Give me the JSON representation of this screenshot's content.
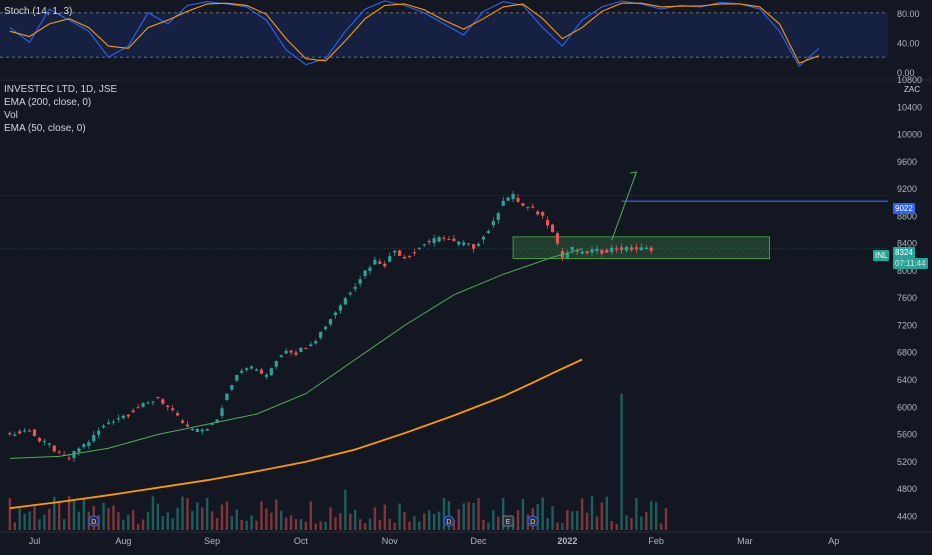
{
  "legend": {
    "stoch": "Stoch (14, 1, 3)",
    "symbol": "INVESTEC LTD, 1D, JSE",
    "ema200": "EMA (200, close, 0)",
    "vol": "Vol",
    "ema50": "EMA (50, close, 0)"
  },
  "price_axis_top_label": "ZAC",
  "price_tags": {
    "line_label": "9022",
    "symbol": "INL",
    "last_price": "8324",
    "countdown": "07:11:44"
  },
  "event_markers": [
    "D",
    "D",
    "E",
    "D"
  ],
  "colors": {
    "background": "#131722",
    "up": "#26a69a",
    "down": "#ef5350",
    "ema50": "#4caf50",
    "ema200": "#ff9800",
    "stoch_k": "#2962ff",
    "stoch_d": "#ff9800",
    "resistance": "#2962ff",
    "zone": "#4caf50",
    "arrow": "#4caf50"
  },
  "chart_data": [
    {
      "type": "line",
      "title": "Stoch (14, 1, 3)",
      "ylim": [
        0,
        100
      ],
      "yticks": [
        "80.00",
        "40.00",
        "0.00"
      ],
      "ytick_values": [
        80,
        40,
        0
      ],
      "bands": [
        20,
        80
      ],
      "series": [
        {
          "name": "%K",
          "x": [
            0,
            4,
            8,
            12,
            16,
            20,
            24,
            28,
            32,
            36,
            40,
            44,
            48,
            52,
            56,
            60,
            64,
            68,
            72,
            76,
            80,
            84,
            88,
            92,
            96,
            100,
            104,
            108,
            112,
            116,
            120,
            124,
            128,
            132,
            136,
            140,
            144,
            148,
            152,
            156,
            160,
            164
          ],
          "values": [
            60,
            40,
            85,
            70,
            55,
            20,
            35,
            80,
            65,
            90,
            95,
            92,
            88,
            70,
            30,
            10,
            18,
            55,
            85,
            96,
            90,
            80,
            65,
            50,
            82,
            95,
            90,
            60,
            35,
            70,
            88,
            96,
            92,
            85,
            90,
            88,
            94,
            92,
            85,
            55,
            8,
            32
          ]
        },
        {
          "name": "%D",
          "x": [
            0,
            4,
            8,
            12,
            16,
            20,
            24,
            28,
            32,
            36,
            40,
            44,
            48,
            52,
            56,
            60,
            64,
            68,
            72,
            76,
            80,
            84,
            88,
            92,
            96,
            100,
            104,
            108,
            112,
            116,
            120,
            124,
            128,
            132,
            136,
            140,
            144,
            148,
            152,
            156,
            160,
            164
          ],
          "values": [
            55,
            48,
            65,
            72,
            60,
            35,
            32,
            60,
            70,
            82,
            92,
            93,
            90,
            78,
            45,
            18,
            15,
            42,
            72,
            90,
            92,
            84,
            70,
            58,
            72,
            88,
            92,
            72,
            45,
            60,
            82,
            93,
            93,
            88,
            89,
            89,
            92,
            92,
            88,
            65,
            12,
            22
          ]
        }
      ]
    },
    {
      "type": "line",
      "title": "INVESTEC LTD, 1D, JSE",
      "ylabel": "ZAC",
      "ylim": [
        4200,
        10800
      ],
      "yticks": [
        "4400",
        "4800",
        "5200",
        "5600",
        "6000",
        "6400",
        "6800",
        "7200",
        "7600",
        "8000",
        "8400",
        "8800",
        "9200",
        "9600",
        "10000",
        "10400",
        "10800"
      ],
      "ytick_values": [
        4400,
        4800,
        5200,
        5600,
        6000,
        6400,
        6800,
        7200,
        7600,
        8000,
        8400,
        8800,
        9200,
        9600,
        10000,
        10400,
        10800
      ],
      "xlim": [
        -2,
        178
      ],
      "xticks": [
        "Jul",
        "Aug",
        "Sep",
        "Oct",
        "Nov",
        "Dec",
        "2022",
        "Feb",
        "Mar",
        "Ap"
      ],
      "xtick_positions": [
        5,
        23,
        41,
        59,
        77,
        95,
        113,
        131,
        149,
        167
      ],
      "series": [
        {
          "name": "Price",
          "x": [
            0,
            2,
            4,
            6,
            8,
            10,
            12,
            14,
            16,
            18,
            20,
            22,
            24,
            26,
            28,
            30,
            32,
            34,
            36,
            38,
            40,
            42,
            44,
            46,
            48,
            50,
            52,
            54,
            56,
            58,
            60,
            62,
            64,
            66,
            68,
            70,
            72,
            74,
            76,
            78,
            80,
            82,
            84,
            86,
            88,
            90,
            92,
            94,
            96,
            98,
            100,
            102,
            104,
            106,
            108,
            110,
            112,
            114,
            116,
            118,
            120,
            122,
            124,
            126,
            128,
            130
          ],
          "values": [
            5600,
            5620,
            5680,
            5500,
            5450,
            5300,
            5250,
            5400,
            5500,
            5650,
            5780,
            5850,
            5900,
            6000,
            6050,
            6150,
            6000,
            5850,
            5700,
            5650,
            5700,
            5800,
            6200,
            6500,
            6600,
            6550,
            6450,
            6700,
            6850,
            6800,
            6900,
            7000,
            7200,
            7400,
            7600,
            7800,
            8000,
            8150,
            8100,
            8300,
            8200,
            8280,
            8400,
            8450,
            8500,
            8420,
            8400,
            8350,
            8500,
            8700,
            9050,
            9100,
            8950,
            8900,
            8800,
            8600,
            8200,
            8324,
            8250,
            8300,
            8280,
            8324,
            8324,
            8324,
            8324,
            8324
          ]
        },
        {
          "name": "EMA (50, close, 0)",
          "x": [
            0,
            10,
            20,
            30,
            40,
            50,
            60,
            70,
            80,
            90,
            100,
            106,
            110,
            116
          ],
          "values": [
            5250,
            5280,
            5400,
            5600,
            5750,
            5900,
            6200,
            6700,
            7200,
            7650,
            7950,
            8100,
            8200,
            8324
          ]
        },
        {
          "name": "EMA (200, close, 0)",
          "x": [
            0,
            10,
            20,
            30,
            40,
            50,
            60,
            70,
            80,
            90,
            100,
            106,
            110,
            116
          ],
          "values": [
            4520,
            4610,
            4710,
            4820,
            4930,
            5060,
            5200,
            5380,
            5620,
            5880,
            6160,
            6360,
            6500,
            6700
          ]
        }
      ],
      "annotations": {
        "resistance": 9022,
        "zone": [
          8180,
          8500
        ],
        "last_price": 8324
      }
    }
  ]
}
